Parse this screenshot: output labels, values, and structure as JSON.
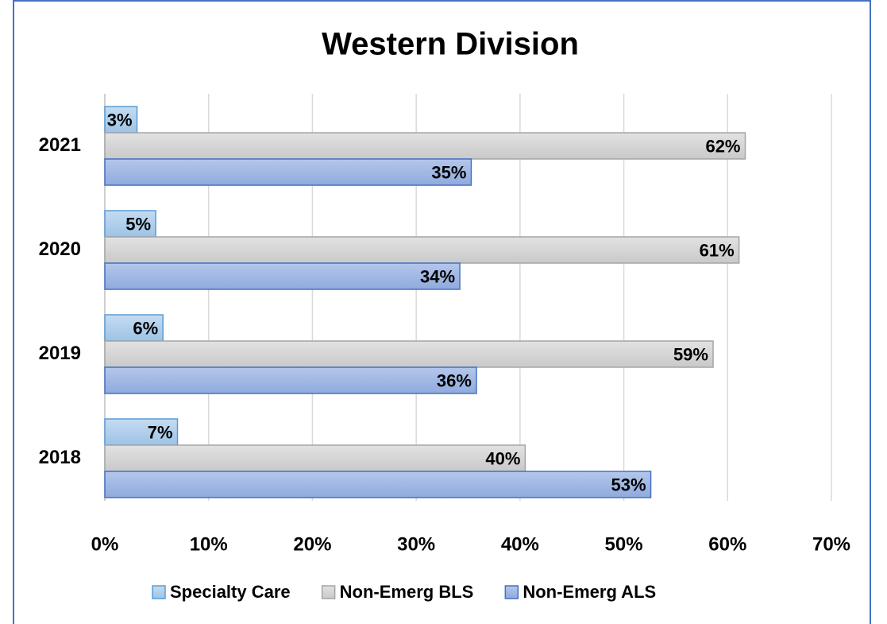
{
  "chart_data": {
    "type": "bar",
    "orientation": "horizontal",
    "title": "Western Division",
    "categories": [
      "2018",
      "2019",
      "2020",
      "2021"
    ],
    "series": [
      {
        "name": "Specialty Care",
        "color": "#9dc3e6",
        "values": [
          7.0,
          5.6,
          4.9,
          3.1
        ],
        "value_labels": [
          "7%",
          "6%",
          "5%",
          "3%"
        ]
      },
      {
        "name": "Non-Emerg BLS",
        "color": "#c9c9c9",
        "values": [
          40.5,
          58.6,
          61.1,
          61.7
        ],
        "value_labels": [
          "40%",
          "59%",
          "61%",
          "62%"
        ]
      },
      {
        "name": "Non-Emerg ALS",
        "color": "#8faadc",
        "values": [
          52.6,
          35.8,
          34.2,
          35.3
        ],
        "value_labels": [
          "53%",
          "36%",
          "34%",
          "35%"
        ]
      }
    ],
    "xlim": [
      0,
      70
    ],
    "xticks": [
      {
        "value": 0,
        "label": "0%"
      },
      {
        "value": 10,
        "label": "10%"
      },
      {
        "value": 20,
        "label": "20%"
      },
      {
        "value": 30,
        "label": "30%"
      },
      {
        "value": 40,
        "label": "40%"
      },
      {
        "value": 50,
        "label": "50%"
      },
      {
        "value": 60,
        "label": "60%"
      },
      {
        "value": 70,
        "label": "70%"
      }
    ],
    "grid": true,
    "legend": "bottom"
  }
}
